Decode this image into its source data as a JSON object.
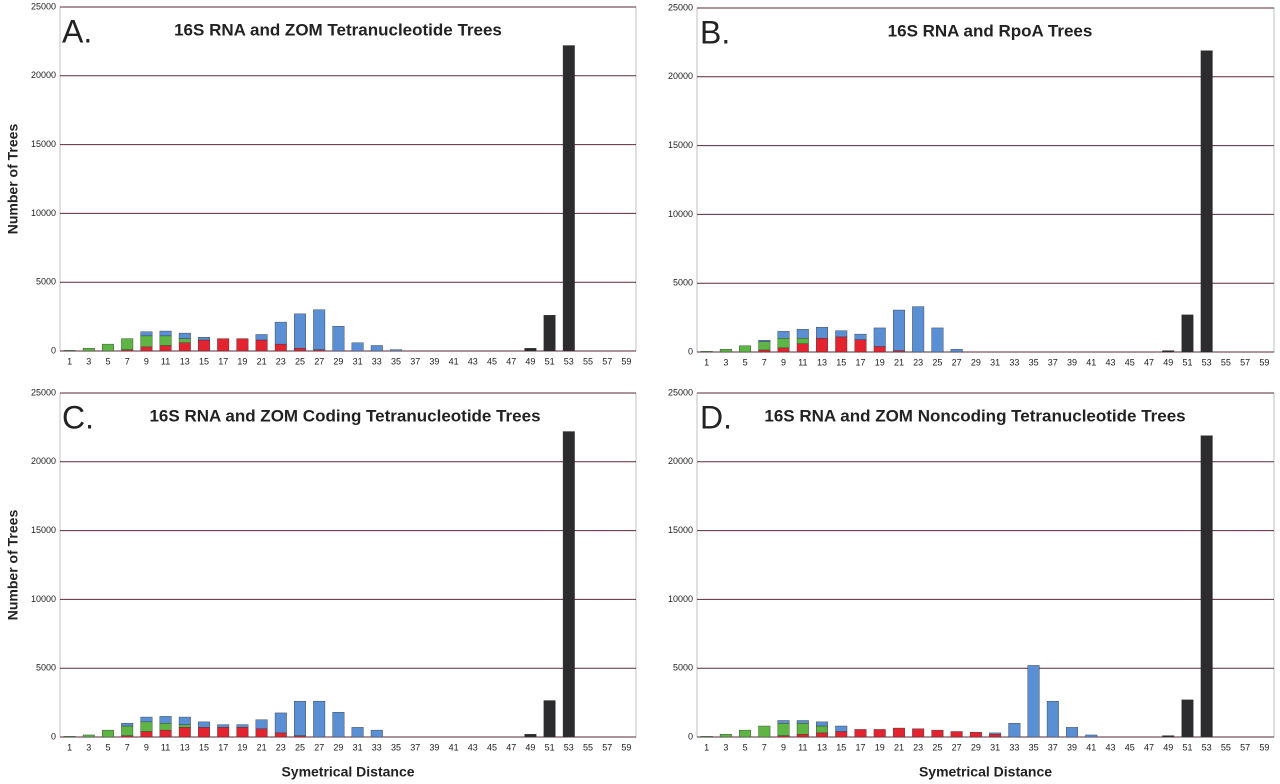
{
  "chart_data": [
    {
      "type": "bar",
      "stacked": true,
      "label": "A.",
      "title": "16S RNA and ZOM Tetranucleotide Trees",
      "ylabel": "Number of Trees",
      "categories": [
        1,
        3,
        5,
        7,
        9,
        11,
        13,
        15,
        17,
        19,
        21,
        23,
        25,
        27,
        29,
        31,
        33,
        35,
        37,
        39,
        41,
        43,
        45,
        47,
        49,
        51,
        53,
        55,
        57,
        59
      ],
      "series": [
        {
          "color": "#e32430",
          "values": [
            0,
            0,
            0,
            100,
            300,
            400,
            600,
            800,
            900,
            900,
            800,
            500,
            200,
            100,
            0,
            0,
            0,
            0,
            0,
            0,
            0,
            0,
            0,
            0,
            0,
            0,
            0,
            0,
            0,
            0
          ]
        },
        {
          "color": "#5db544",
          "values": [
            50,
            200,
            500,
            800,
            800,
            700,
            300,
            0,
            0,
            0,
            0,
            0,
            0,
            0,
            0,
            0,
            0,
            0,
            0,
            0,
            0,
            0,
            0,
            0,
            0,
            0,
            0,
            0,
            0,
            0
          ]
        },
        {
          "color": "#5b8fd4",
          "values": [
            0,
            0,
            0,
            0,
            300,
            350,
            400,
            200,
            0,
            0,
            400,
            1600,
            2500,
            2900,
            1800,
            600,
            400,
            100,
            0,
            0,
            0,
            0,
            0,
            0,
            0,
            0,
            0,
            0,
            0,
            0
          ]
        },
        {
          "color": "#2c2c2e",
          "values": [
            0,
            0,
            0,
            0,
            0,
            0,
            0,
            0,
            0,
            0,
            0,
            0,
            0,
            0,
            0,
            0,
            0,
            0,
            0,
            0,
            0,
            0,
            0,
            0,
            200,
            2600,
            22200,
            0,
            0,
            0
          ]
        }
      ],
      "ylim": [
        0,
        25000
      ],
      "yticks": [
        0,
        5000,
        10000,
        15000,
        20000,
        25000
      ],
      "grid": true
    },
    {
      "type": "bar",
      "stacked": true,
      "label": "B.",
      "title": "16S RNA and RpoA Trees",
      "categories": [
        1,
        3,
        5,
        7,
        9,
        11,
        13,
        15,
        17,
        19,
        21,
        23,
        25,
        27,
        29,
        31,
        33,
        35,
        37,
        39,
        41,
        43,
        45,
        47,
        49,
        51,
        53,
        55,
        57,
        59
      ],
      "series": [
        {
          "color": "#e32430",
          "values": [
            0,
            0,
            0,
            150,
            300,
            600,
            1000,
            1100,
            900,
            400,
            100,
            0,
            0,
            0,
            0,
            0,
            0,
            0,
            0,
            0,
            0,
            0,
            0,
            0,
            0,
            0,
            0,
            0,
            0,
            0
          ]
        },
        {
          "color": "#5db544",
          "values": [
            50,
            200,
            450,
            600,
            700,
            400,
            0,
            0,
            0,
            0,
            0,
            0,
            0,
            0,
            0,
            0,
            0,
            0,
            0,
            0,
            0,
            0,
            0,
            0,
            0,
            0,
            0,
            0,
            0,
            0
          ]
        },
        {
          "color": "#5b8fd4",
          "values": [
            0,
            0,
            0,
            100,
            500,
            650,
            800,
            450,
            400,
            1350,
            2950,
            3300,
            1750,
            200,
            0,
            0,
            0,
            0,
            0,
            0,
            0,
            0,
            0,
            0,
            0,
            0,
            0,
            0,
            0,
            0
          ]
        },
        {
          "color": "#2c2c2e",
          "values": [
            0,
            0,
            0,
            0,
            0,
            0,
            0,
            0,
            0,
            0,
            0,
            0,
            0,
            0,
            0,
            0,
            0,
            0,
            0,
            0,
            0,
            0,
            0,
            0,
            100,
            2700,
            21900,
            0,
            0,
            0
          ]
        }
      ],
      "ylim": [
        0,
        25000
      ],
      "yticks": [
        0,
        5000,
        10000,
        15000,
        20000,
        25000
      ],
      "grid": true
    },
    {
      "type": "bar",
      "stacked": true,
      "label": "C.",
      "title": "16S RNA and ZOM Coding Tetranucleotide Trees",
      "ylabel": "Number of Trees",
      "xlabel": "Symetrical Distance",
      "categories": [
        1,
        3,
        5,
        7,
        9,
        11,
        13,
        15,
        17,
        19,
        21,
        23,
        25,
        27,
        29,
        31,
        33,
        35,
        37,
        39,
        41,
        43,
        45,
        47,
        49,
        51,
        53,
        55,
        57,
        59
      ],
      "series": [
        {
          "color": "#e32430",
          "values": [
            0,
            0,
            0,
            100,
            400,
            500,
            700,
            700,
            700,
            700,
            600,
            300,
            100,
            0,
            0,
            0,
            0,
            0,
            0,
            0,
            0,
            0,
            0,
            0,
            0,
            0,
            0,
            0,
            0,
            0
          ]
        },
        {
          "color": "#5db544",
          "values": [
            50,
            150,
            500,
            700,
            700,
            500,
            200,
            0,
            0,
            0,
            0,
            0,
            0,
            0,
            0,
            0,
            0,
            0,
            0,
            0,
            0,
            0,
            0,
            0,
            0,
            0,
            0,
            0,
            0,
            0
          ]
        },
        {
          "color": "#5b8fd4",
          "values": [
            0,
            0,
            0,
            200,
            350,
            500,
            550,
            400,
            200,
            200,
            650,
            1450,
            2500,
            2600,
            1800,
            700,
            500,
            0,
            0,
            0,
            0,
            0,
            0,
            0,
            0,
            0,
            0,
            0,
            0,
            0
          ]
        },
        {
          "color": "#2c2c2e",
          "values": [
            0,
            0,
            0,
            0,
            0,
            0,
            0,
            0,
            0,
            0,
            0,
            0,
            0,
            0,
            0,
            0,
            0,
            0,
            0,
            0,
            0,
            0,
            0,
            0,
            200,
            2650,
            22200,
            0,
            0,
            0
          ]
        }
      ],
      "ylim": [
        0,
        25000
      ],
      "yticks": [
        0,
        5000,
        10000,
        15000,
        20000,
        25000
      ],
      "grid": true
    },
    {
      "type": "bar",
      "stacked": true,
      "label": "D.",
      "title": "16S RNA and ZOM Noncoding Tetranucleotide Trees",
      "xlabel": "Symetrical Distance",
      "categories": [
        1,
        3,
        5,
        7,
        9,
        11,
        13,
        15,
        17,
        19,
        21,
        23,
        25,
        27,
        29,
        31,
        33,
        35,
        37,
        39,
        41,
        43,
        45,
        47,
        49,
        51,
        53,
        55,
        57,
        59
      ],
      "series": [
        {
          "color": "#e32430",
          "values": [
            0,
            0,
            0,
            0,
            100,
            200,
            300,
            400,
            550,
            550,
            650,
            600,
            500,
            400,
            350,
            200,
            0,
            0,
            0,
            0,
            0,
            0,
            0,
            0,
            0,
            0,
            0,
            0,
            0,
            0
          ]
        },
        {
          "color": "#5db544",
          "values": [
            50,
            200,
            500,
            800,
            900,
            800,
            500,
            0,
            0,
            0,
            0,
            0,
            0,
            0,
            0,
            0,
            0,
            0,
            0,
            0,
            0,
            0,
            0,
            0,
            0,
            0,
            0,
            0,
            0,
            0
          ]
        },
        {
          "color": "#5b8fd4",
          "values": [
            0,
            0,
            0,
            0,
            200,
            200,
            300,
            400,
            0,
            0,
            0,
            0,
            0,
            0,
            0,
            100,
            1000,
            5200,
            2600,
            700,
            150,
            0,
            0,
            0,
            0,
            0,
            0,
            0,
            0,
            0
          ]
        },
        {
          "color": "#2c2c2e",
          "values": [
            0,
            0,
            0,
            0,
            0,
            0,
            0,
            0,
            0,
            0,
            0,
            0,
            0,
            0,
            0,
            0,
            0,
            0,
            0,
            0,
            0,
            0,
            0,
            0,
            100,
            2700,
            21900,
            0,
            0,
            0
          ]
        }
      ],
      "ylim": [
        0,
        25000
      ],
      "yticks": [
        0,
        5000,
        10000,
        15000,
        20000,
        25000
      ],
      "grid": true
    }
  ]
}
